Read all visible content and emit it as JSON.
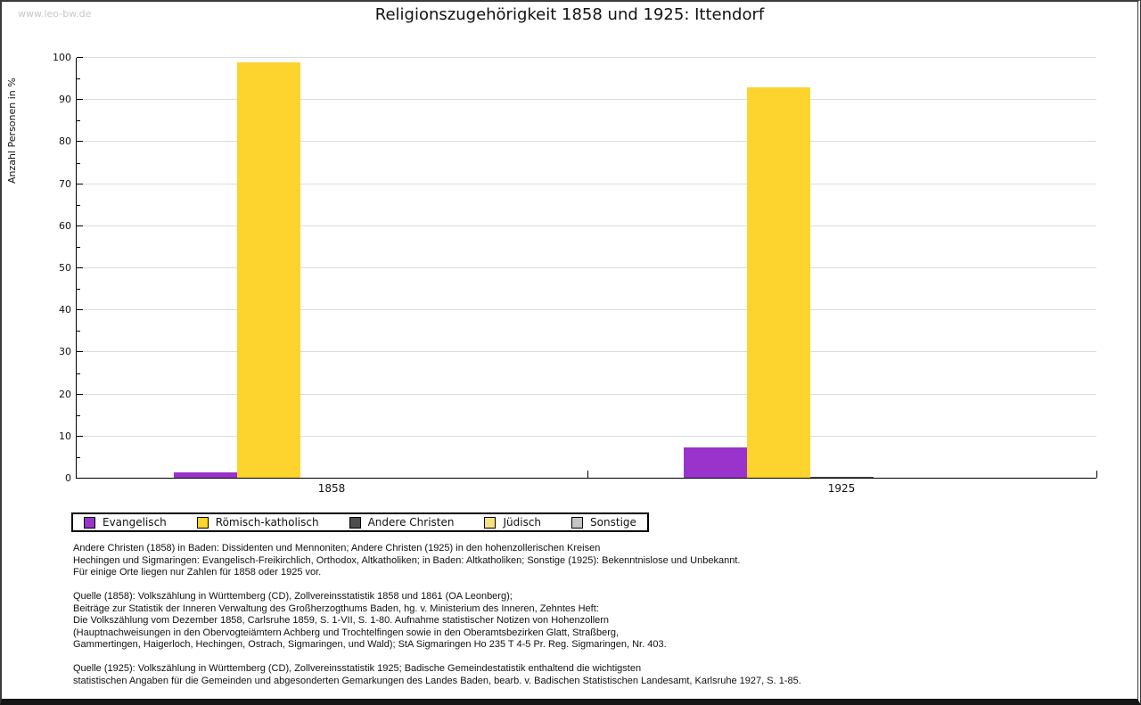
{
  "header": {
    "watermark": "www.leo-bw.de",
    "title": "Religionszugehörigkeit 1858 und 1925: Ittendorf"
  },
  "chart_data": {
    "type": "bar",
    "title": "Religionszugehörigkeit 1858 und 1925: Ittendorf",
    "xlabel": "",
    "ylabel": "Anzahl Personen in %",
    "ylim": [
      0,
      100
    ],
    "y_major_tick_step": 10,
    "y_minor_tick_step": 5,
    "grid": true,
    "legend_position": "bottom",
    "grid_color": "#dcdcdc",
    "categories": [
      "1858",
      "1925"
    ],
    "series": [
      {
        "name": "Evangelisch",
        "color": "#9933cc",
        "values": [
          1.2,
          7.2
        ]
      },
      {
        "name": "Römisch-katholisch",
        "color": "#fdd42d",
        "values": [
          98.8,
          92.7
        ]
      },
      {
        "name": "Andere Christen",
        "color": "#4d4d4d",
        "values": [
          0,
          0.3
        ]
      },
      {
        "name": "Jüdisch",
        "color": "#f5e27d",
        "values": [
          0,
          0
        ]
      },
      {
        "name": "Sonstige",
        "color": "#c5c5c5",
        "values": [
          0,
          0
        ]
      }
    ]
  },
  "footnotes": [
    {
      "lines": [
        "Andere Christen (1858) in Baden: Dissidenten und Mennoniten; Andere Christen (1925) in den hohenzollerischen Kreisen",
        "Hechingen und Sigmaringen: Evangelisch-Freikirchlich, Orthodox, Altkatholiken; in Baden: Altkatholiken; Sonstige (1925): Bekenntnislose und Unbekannt.",
        "Für einige Orte liegen nur Zahlen für 1858 oder 1925 vor."
      ]
    },
    {
      "lines": [
        "Quelle (1858): Volkszählung in Württemberg (CD), Zollvereinsstatistik 1858 und 1861 (OA Leonberg);",
        "Beiträge zur Statistik der Inneren Verwaltung des Großherzogthums Baden, hg. v. Ministerium des Inneren, Zehntes Heft:",
        "Die Volkszählung vom Dezember 1858, Carlsruhe 1859, S. 1-VII, S. 1-80. Aufnahme statistischer Notizen von Hohenzollern",
        "(Hauptnachweisungen in den Obervogteiämtern Achberg und Trochtelfingen sowie in den Oberamtsbezirken Glatt, Straßberg,",
        "Gammertingen, Haigerloch, Hechingen, Ostrach, Sigmaringen, und Wald); StA Sigmaringen Ho 235 T 4-5 Pr. Reg. Sigmaringen, Nr. 403."
      ]
    },
    {
      "lines": [
        "Quelle (1925): Volkszählung in Württemberg (CD), Zollvereinsstatistik 1925; Badische Gemeindestatistik enthaltend die wichtigsten",
        "statistischen Angaben für die Gemeinden und abgesonderten Gemarkungen des Landes Baden, bearb. v. Badischen Statistischen Landesamt, Karlsruhe 1927, S. 1-85."
      ]
    }
  ]
}
